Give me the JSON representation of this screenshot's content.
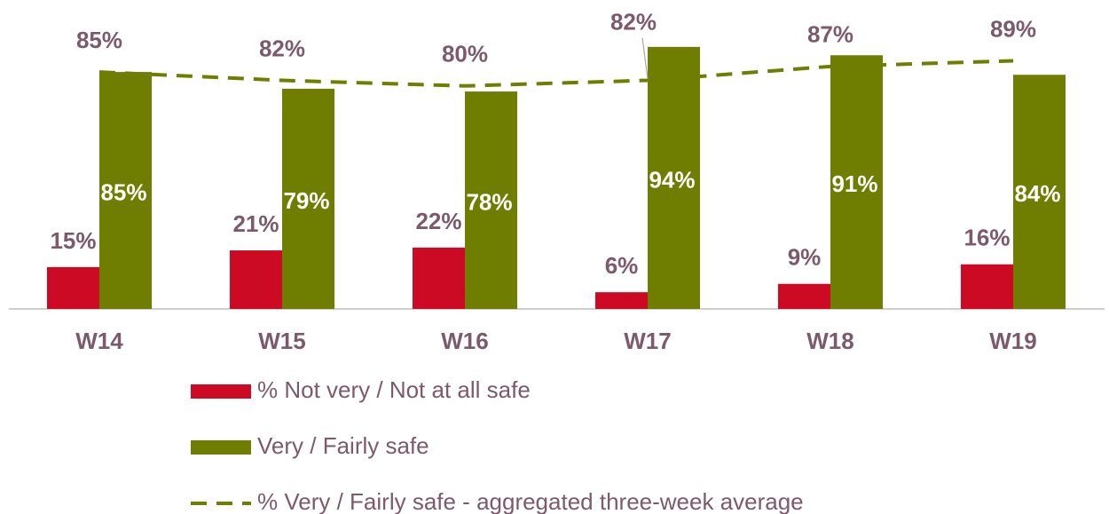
{
  "chart_data": {
    "type": "bar",
    "categories": [
      "W14",
      "W15",
      "W16",
      "W17",
      "W18",
      "W19"
    ],
    "series": [
      {
        "name": "% Not very / Not at all safe",
        "color": "#cc0a24",
        "values": [
          15,
          21,
          22,
          6,
          9,
          16
        ],
        "value_labels": [
          "15%",
          "21%",
          "22%",
          "6%",
          "9%",
          "16%"
        ]
      },
      {
        "name": "Very / Fairly safe",
        "color": "#6f7d00",
        "values": [
          85,
          79,
          78,
          94,
          91,
          84
        ],
        "value_labels": [
          "85%",
          "79%",
          "78%",
          "94%",
          "91%",
          "84%"
        ]
      },
      {
        "name": "% Very / Fairly safe - aggregated three-week average",
        "type": "line",
        "dashed": true,
        "color": "#6f7d00",
        "values": [
          85,
          82,
          80,
          82,
          87,
          89
        ],
        "value_labels": [
          "85%",
          "82%",
          "80%",
          "82%",
          "87%",
          "89%"
        ]
      }
    ]
  }
}
